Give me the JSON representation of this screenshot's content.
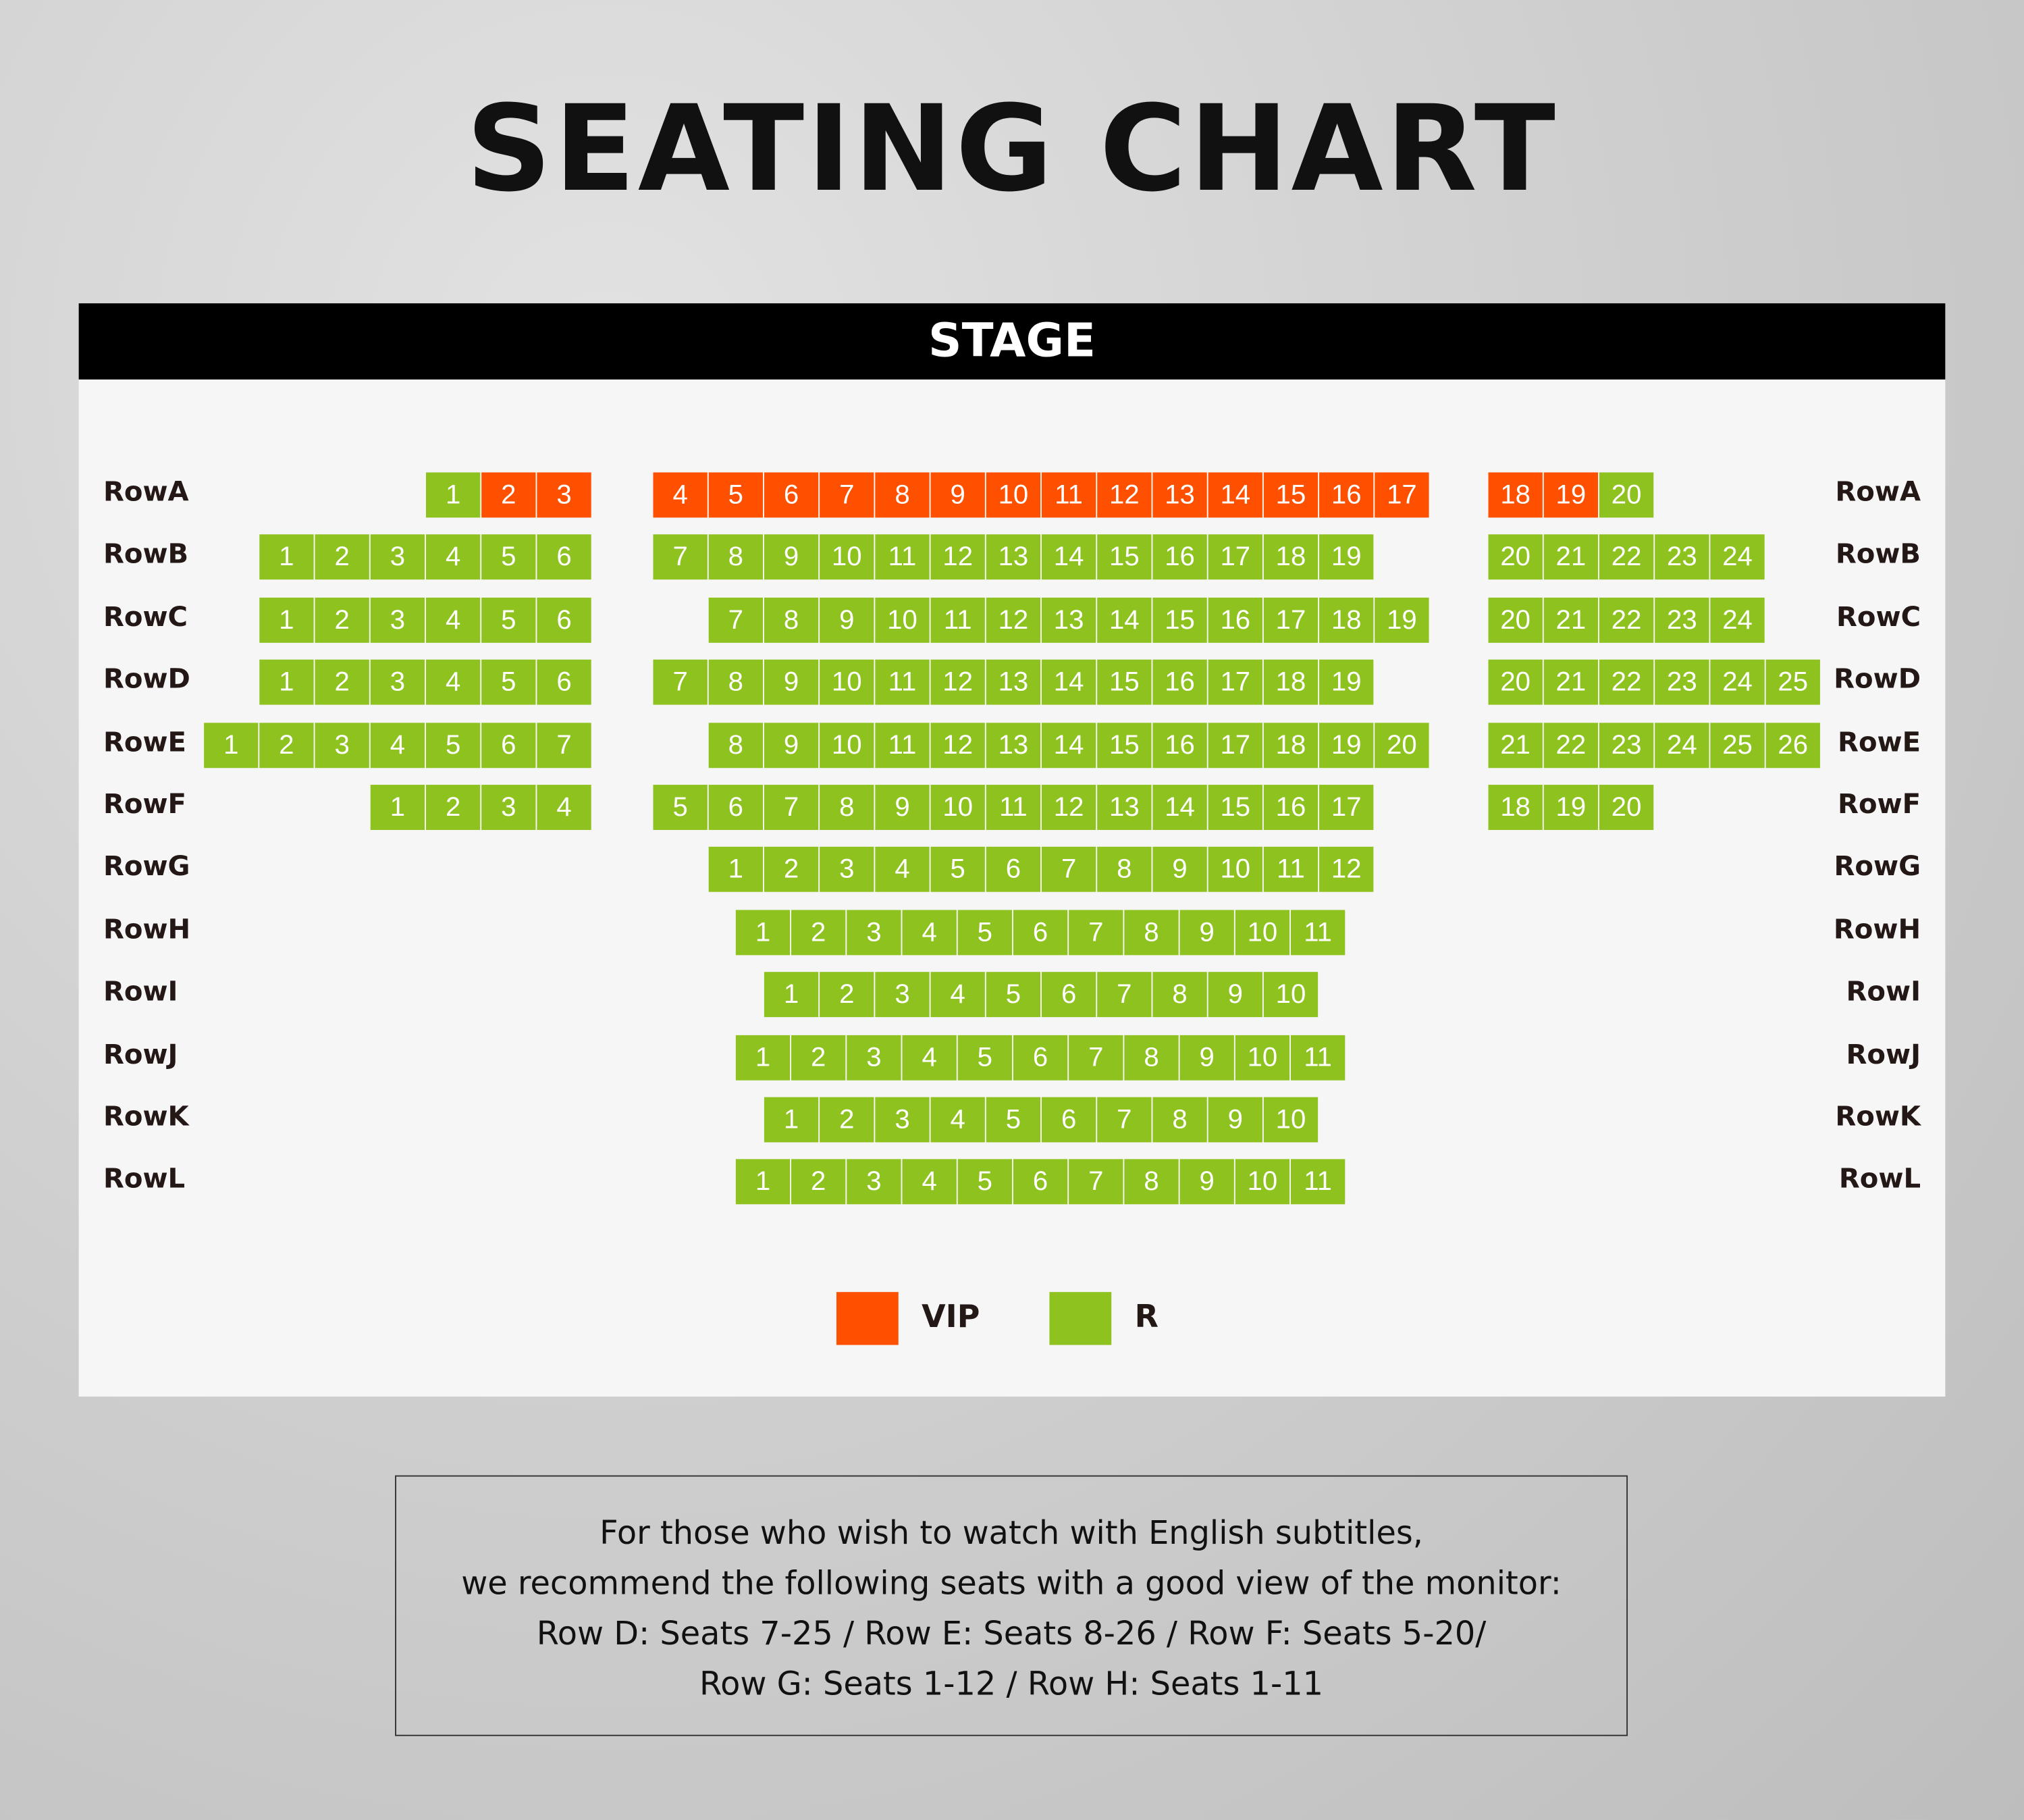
{
  "title": "SEATING CHART",
  "stage_label": "STAGE",
  "colors": {
    "VIP": "#ff5000",
    "R": "#8dc21f"
  },
  "legend": [
    {
      "type": "VIP",
      "label": "VIP"
    },
    {
      "type": "R",
      "label": "R"
    }
  ],
  "rows": [
    {
      "label": "RowA",
      "blocks": [
        [
          [
            1,
            "R"
          ],
          [
            2,
            "VIP"
          ],
          [
            3,
            "VIP"
          ]
        ],
        [
          [
            4,
            "VIP"
          ],
          [
            5,
            "VIP"
          ],
          [
            6,
            "VIP"
          ],
          [
            7,
            "VIP"
          ],
          [
            8,
            "VIP"
          ],
          [
            9,
            "VIP"
          ],
          [
            10,
            "VIP"
          ],
          [
            11,
            "VIP"
          ],
          [
            12,
            "VIP"
          ],
          [
            13,
            "VIP"
          ],
          [
            14,
            "VIP"
          ],
          [
            15,
            "VIP"
          ],
          [
            16,
            "VIP"
          ],
          [
            17,
            "VIP"
          ]
        ],
        [
          [
            18,
            "VIP"
          ],
          [
            19,
            "VIP"
          ],
          [
            20,
            "R"
          ]
        ]
      ]
    },
    {
      "label": "RowB",
      "blocks": [
        [
          [
            1,
            "R"
          ],
          [
            2,
            "R"
          ],
          [
            3,
            "R"
          ],
          [
            4,
            "R"
          ],
          [
            5,
            "R"
          ],
          [
            6,
            "R"
          ]
        ],
        [
          [
            7,
            "R"
          ],
          [
            8,
            "R"
          ],
          [
            9,
            "R"
          ],
          [
            10,
            "R"
          ],
          [
            11,
            "R"
          ],
          [
            12,
            "R"
          ],
          [
            13,
            "R"
          ],
          [
            14,
            "R"
          ],
          [
            15,
            "R"
          ],
          [
            16,
            "R"
          ],
          [
            17,
            "R"
          ],
          [
            18,
            "R"
          ],
          [
            19,
            "R"
          ]
        ],
        [
          [
            20,
            "R"
          ],
          [
            21,
            "R"
          ],
          [
            22,
            "R"
          ],
          [
            23,
            "R"
          ],
          [
            24,
            "R"
          ]
        ]
      ]
    },
    {
      "label": "RowC",
      "blocks": [
        [
          [
            1,
            "R"
          ],
          [
            2,
            "R"
          ],
          [
            3,
            "R"
          ],
          [
            4,
            "R"
          ],
          [
            5,
            "R"
          ],
          [
            6,
            "R"
          ]
        ],
        [
          [
            7,
            "R"
          ],
          [
            8,
            "R"
          ],
          [
            9,
            "R"
          ],
          [
            10,
            "R"
          ],
          [
            11,
            "R"
          ],
          [
            12,
            "R"
          ],
          [
            13,
            "R"
          ],
          [
            14,
            "R"
          ],
          [
            15,
            "R"
          ],
          [
            16,
            "R"
          ],
          [
            17,
            "R"
          ],
          [
            18,
            "R"
          ],
          [
            19,
            "R"
          ]
        ],
        [
          [
            20,
            "R"
          ],
          [
            21,
            "R"
          ],
          [
            22,
            "R"
          ],
          [
            23,
            "R"
          ],
          [
            24,
            "R"
          ]
        ]
      ]
    },
    {
      "label": "RowD",
      "blocks": [
        [
          [
            1,
            "R"
          ],
          [
            2,
            "R"
          ],
          [
            3,
            "R"
          ],
          [
            4,
            "R"
          ],
          [
            5,
            "R"
          ],
          [
            6,
            "R"
          ]
        ],
        [
          [
            7,
            "R"
          ],
          [
            8,
            "R"
          ],
          [
            9,
            "R"
          ],
          [
            10,
            "R"
          ],
          [
            11,
            "R"
          ],
          [
            12,
            "R"
          ],
          [
            13,
            "R"
          ],
          [
            14,
            "R"
          ],
          [
            15,
            "R"
          ],
          [
            16,
            "R"
          ],
          [
            17,
            "R"
          ],
          [
            18,
            "R"
          ],
          [
            19,
            "R"
          ]
        ],
        [
          [
            20,
            "R"
          ],
          [
            21,
            "R"
          ],
          [
            22,
            "R"
          ],
          [
            23,
            "R"
          ],
          [
            24,
            "R"
          ],
          [
            25,
            "R"
          ]
        ]
      ]
    },
    {
      "label": "RowE",
      "blocks": [
        [
          [
            1,
            "R"
          ],
          [
            2,
            "R"
          ],
          [
            3,
            "R"
          ],
          [
            4,
            "R"
          ],
          [
            5,
            "R"
          ],
          [
            6,
            "R"
          ],
          [
            7,
            "R"
          ]
        ],
        [
          [
            8,
            "R"
          ],
          [
            9,
            "R"
          ],
          [
            10,
            "R"
          ],
          [
            11,
            "R"
          ],
          [
            12,
            "R"
          ],
          [
            13,
            "R"
          ],
          [
            14,
            "R"
          ],
          [
            15,
            "R"
          ],
          [
            16,
            "R"
          ],
          [
            17,
            "R"
          ],
          [
            18,
            "R"
          ],
          [
            19,
            "R"
          ],
          [
            20,
            "R"
          ]
        ],
        [
          [
            21,
            "R"
          ],
          [
            22,
            "R"
          ],
          [
            23,
            "R"
          ],
          [
            24,
            "R"
          ],
          [
            25,
            "R"
          ],
          [
            26,
            "R"
          ]
        ]
      ]
    },
    {
      "label": "RowF",
      "blocks": [
        [
          [
            1,
            "R"
          ],
          [
            2,
            "R"
          ],
          [
            3,
            "R"
          ],
          [
            4,
            "R"
          ]
        ],
        [
          [
            5,
            "R"
          ],
          [
            6,
            "R"
          ],
          [
            7,
            "R"
          ],
          [
            8,
            "R"
          ],
          [
            9,
            "R"
          ],
          [
            10,
            "R"
          ],
          [
            11,
            "R"
          ],
          [
            12,
            "R"
          ],
          [
            13,
            "R"
          ],
          [
            14,
            "R"
          ],
          [
            15,
            "R"
          ],
          [
            16,
            "R"
          ],
          [
            17,
            "R"
          ]
        ],
        [
          [
            18,
            "R"
          ],
          [
            19,
            "R"
          ],
          [
            20,
            "R"
          ]
        ]
      ]
    },
    {
      "label": "RowG",
      "blocks": [
        [],
        [
          [
            1,
            "R"
          ],
          [
            2,
            "R"
          ],
          [
            3,
            "R"
          ],
          [
            4,
            "R"
          ],
          [
            5,
            "R"
          ],
          [
            6,
            "R"
          ],
          [
            7,
            "R"
          ],
          [
            8,
            "R"
          ],
          [
            9,
            "R"
          ],
          [
            10,
            "R"
          ],
          [
            11,
            "R"
          ],
          [
            12,
            "R"
          ]
        ],
        []
      ]
    },
    {
      "label": "RowH",
      "blocks": [
        [],
        [
          [
            1,
            "R"
          ],
          [
            2,
            "R"
          ],
          [
            3,
            "R"
          ],
          [
            4,
            "R"
          ],
          [
            5,
            "R"
          ],
          [
            6,
            "R"
          ],
          [
            7,
            "R"
          ],
          [
            8,
            "R"
          ],
          [
            9,
            "R"
          ],
          [
            10,
            "R"
          ],
          [
            11,
            "R"
          ]
        ],
        []
      ]
    },
    {
      "label": "RowI",
      "blocks": [
        [],
        [
          [
            1,
            "R"
          ],
          [
            2,
            "R"
          ],
          [
            3,
            "R"
          ],
          [
            4,
            "R"
          ],
          [
            5,
            "R"
          ],
          [
            6,
            "R"
          ],
          [
            7,
            "R"
          ],
          [
            8,
            "R"
          ],
          [
            9,
            "R"
          ],
          [
            10,
            "R"
          ]
        ],
        []
      ]
    },
    {
      "label": "RowJ",
      "blocks": [
        [],
        [
          [
            1,
            "R"
          ],
          [
            2,
            "R"
          ],
          [
            3,
            "R"
          ],
          [
            4,
            "R"
          ],
          [
            5,
            "R"
          ],
          [
            6,
            "R"
          ],
          [
            7,
            "R"
          ],
          [
            8,
            "R"
          ],
          [
            9,
            "R"
          ],
          [
            10,
            "R"
          ],
          [
            11,
            "R"
          ]
        ],
        []
      ]
    },
    {
      "label": "RowK",
      "blocks": [
        [],
        [
          [
            1,
            "R"
          ],
          [
            2,
            "R"
          ],
          [
            3,
            "R"
          ],
          [
            4,
            "R"
          ],
          [
            5,
            "R"
          ],
          [
            6,
            "R"
          ],
          [
            7,
            "R"
          ],
          [
            8,
            "R"
          ],
          [
            9,
            "R"
          ],
          [
            10,
            "R"
          ]
        ],
        []
      ]
    },
    {
      "label": "RowL",
      "blocks": [
        [],
        [
          [
            1,
            "R"
          ],
          [
            2,
            "R"
          ],
          [
            3,
            "R"
          ],
          [
            4,
            "R"
          ],
          [
            5,
            "R"
          ],
          [
            6,
            "R"
          ],
          [
            7,
            "R"
          ],
          [
            8,
            "R"
          ],
          [
            9,
            "R"
          ],
          [
            10,
            "R"
          ],
          [
            11,
            "R"
          ]
        ],
        []
      ]
    }
  ],
  "notice": {
    "lines": [
      "For those who wish to watch with English subtitles,",
      "we recommend the following seats with a good view of the monitor:",
      "Row D: Seats 7-25 / Row E: Seats 8-26 / Row F: Seats 5-20/",
      "Row G: Seats 1-12 / Row H: Seats 1-11"
    ]
  }
}
